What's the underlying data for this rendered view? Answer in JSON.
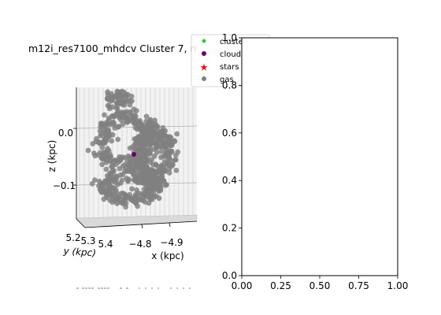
{
  "chart_data": [
    {
      "type": "scatter",
      "title": "m12i_res7100_mhdcv Cluster 7, n",
      "title_overlay": "star",
      "xlabel": "x (kpc)",
      "ylabel": "y (kpc)",
      "zlabel": "z (kpc)",
      "x_ticks": [
        "−4.8",
        "−4.9"
      ],
      "y_ticks": [
        "5.2",
        "5.3",
        "5.4"
      ],
      "z_ticks": [
        "0.0",
        "−0.1"
      ],
      "grid": true,
      "legend": {
        "placement": "top-right",
        "entries": [
          {
            "label": "clusters",
            "marker": "diamond",
            "color": "#22cc22"
          },
          {
            "label": "clouds",
            "marker": "circle",
            "color": "#6a006a"
          },
          {
            "label": "stars",
            "marker": "star",
            "color": "#ff0000"
          },
          {
            "label": "gas",
            "marker": "circle",
            "color": "#808080"
          }
        ]
      },
      "series": [
        {
          "name": "gas",
          "color": "#808080",
          "count": 900
        },
        {
          "name": "clouds",
          "color": "#6a006a",
          "count": 1
        }
      ]
    },
    {
      "type": "scatter",
      "x_ticks": [
        "0.00",
        "0.25",
        "0.50",
        "0.75",
        "1.00"
      ],
      "y_ticks": [
        "0.0",
        "0.2",
        "0.4",
        "0.6",
        "0.8",
        "1.0"
      ],
      "xlim": [
        0,
        1
      ],
      "ylim": [
        0,
        1
      ],
      "series": []
    }
  ]
}
